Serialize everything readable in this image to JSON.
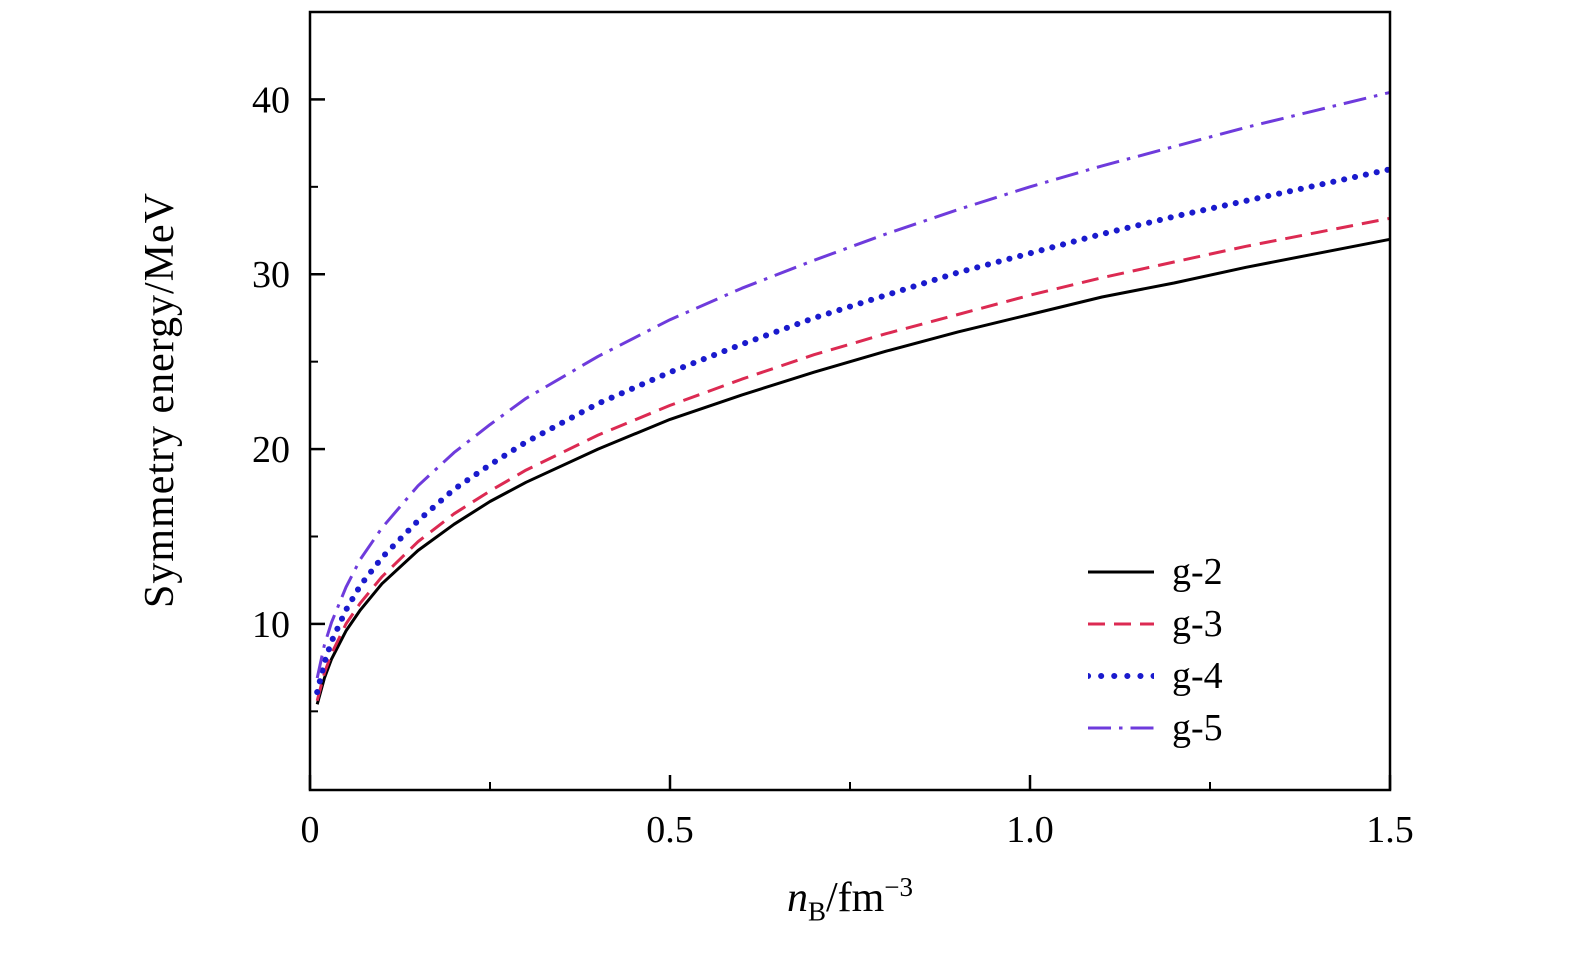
{
  "figure": {
    "xlabel": {
      "symbol": "n",
      "subscript": "B",
      "unit": "/fm",
      "exponent": "−3"
    }
  },
  "chart_data": {
    "type": "line",
    "title": "",
    "xlabel": "n_B/fm^-3",
    "ylabel": "Symmetry energy/MeV",
    "xlim": [
      0,
      1.5
    ],
    "ylim": [
      0.5,
      45
    ],
    "grid": false,
    "legend_position": "lower right",
    "x_ticks": {
      "values": [
        0,
        0.5,
        1.0,
        1.5
      ],
      "labels": [
        "0",
        "0.5",
        "1.0",
        "1.5"
      ]
    },
    "y_ticks": {
      "values": [
        10,
        20,
        30,
        40
      ],
      "labels": [
        "10",
        "20",
        "30",
        "40"
      ]
    },
    "x_minor_ticks": [
      0.25,
      0.75,
      1.25
    ],
    "y_minor_ticks": [
      5,
      15,
      25,
      35
    ],
    "x": [
      0.01,
      0.02,
      0.03,
      0.05,
      0.07,
      0.1,
      0.15,
      0.2,
      0.25,
      0.3,
      0.4,
      0.5,
      0.6,
      0.7,
      0.8,
      0.9,
      1.0,
      1.1,
      1.2,
      1.3,
      1.4,
      1.5
    ],
    "series": [
      {
        "name": "g-2",
        "color": "#000000",
        "line_style": "solid",
        "values": [
          5.4,
          6.9,
          8.0,
          9.6,
          10.8,
          12.3,
          14.2,
          15.7,
          17.0,
          18.1,
          20.0,
          21.7,
          23.1,
          24.4,
          25.6,
          26.7,
          27.7,
          28.7,
          29.5,
          30.4,
          31.2,
          32.0
        ]
      },
      {
        "name": "g-3",
        "color": "#dc2a52",
        "line_style": "dashed",
        "values": [
          5.6,
          7.2,
          8.3,
          10.0,
          11.2,
          12.7,
          14.7,
          16.3,
          17.6,
          18.8,
          20.8,
          22.5,
          24.0,
          25.4,
          26.6,
          27.7,
          28.8,
          29.8,
          30.7,
          31.6,
          32.4,
          33.2
        ]
      },
      {
        "name": "g-4",
        "color": "#1a1acd",
        "line_style": "dotted",
        "values": [
          6.1,
          7.8,
          9.0,
          10.8,
          12.2,
          13.8,
          15.9,
          17.7,
          19.1,
          20.4,
          22.6,
          24.4,
          26.0,
          27.5,
          28.8,
          30.1,
          31.2,
          32.3,
          33.3,
          34.2,
          35.1,
          36.0
        ]
      },
      {
        "name": "g-5",
        "color": "#6e3bdc",
        "line_style": "dashdot",
        "values": [
          6.9,
          8.8,
          10.1,
          12.1,
          13.7,
          15.5,
          17.9,
          19.8,
          21.4,
          22.9,
          25.3,
          27.4,
          29.2,
          30.8,
          32.3,
          33.7,
          35.0,
          36.2,
          37.3,
          38.4,
          39.4,
          40.4
        ]
      }
    ]
  }
}
